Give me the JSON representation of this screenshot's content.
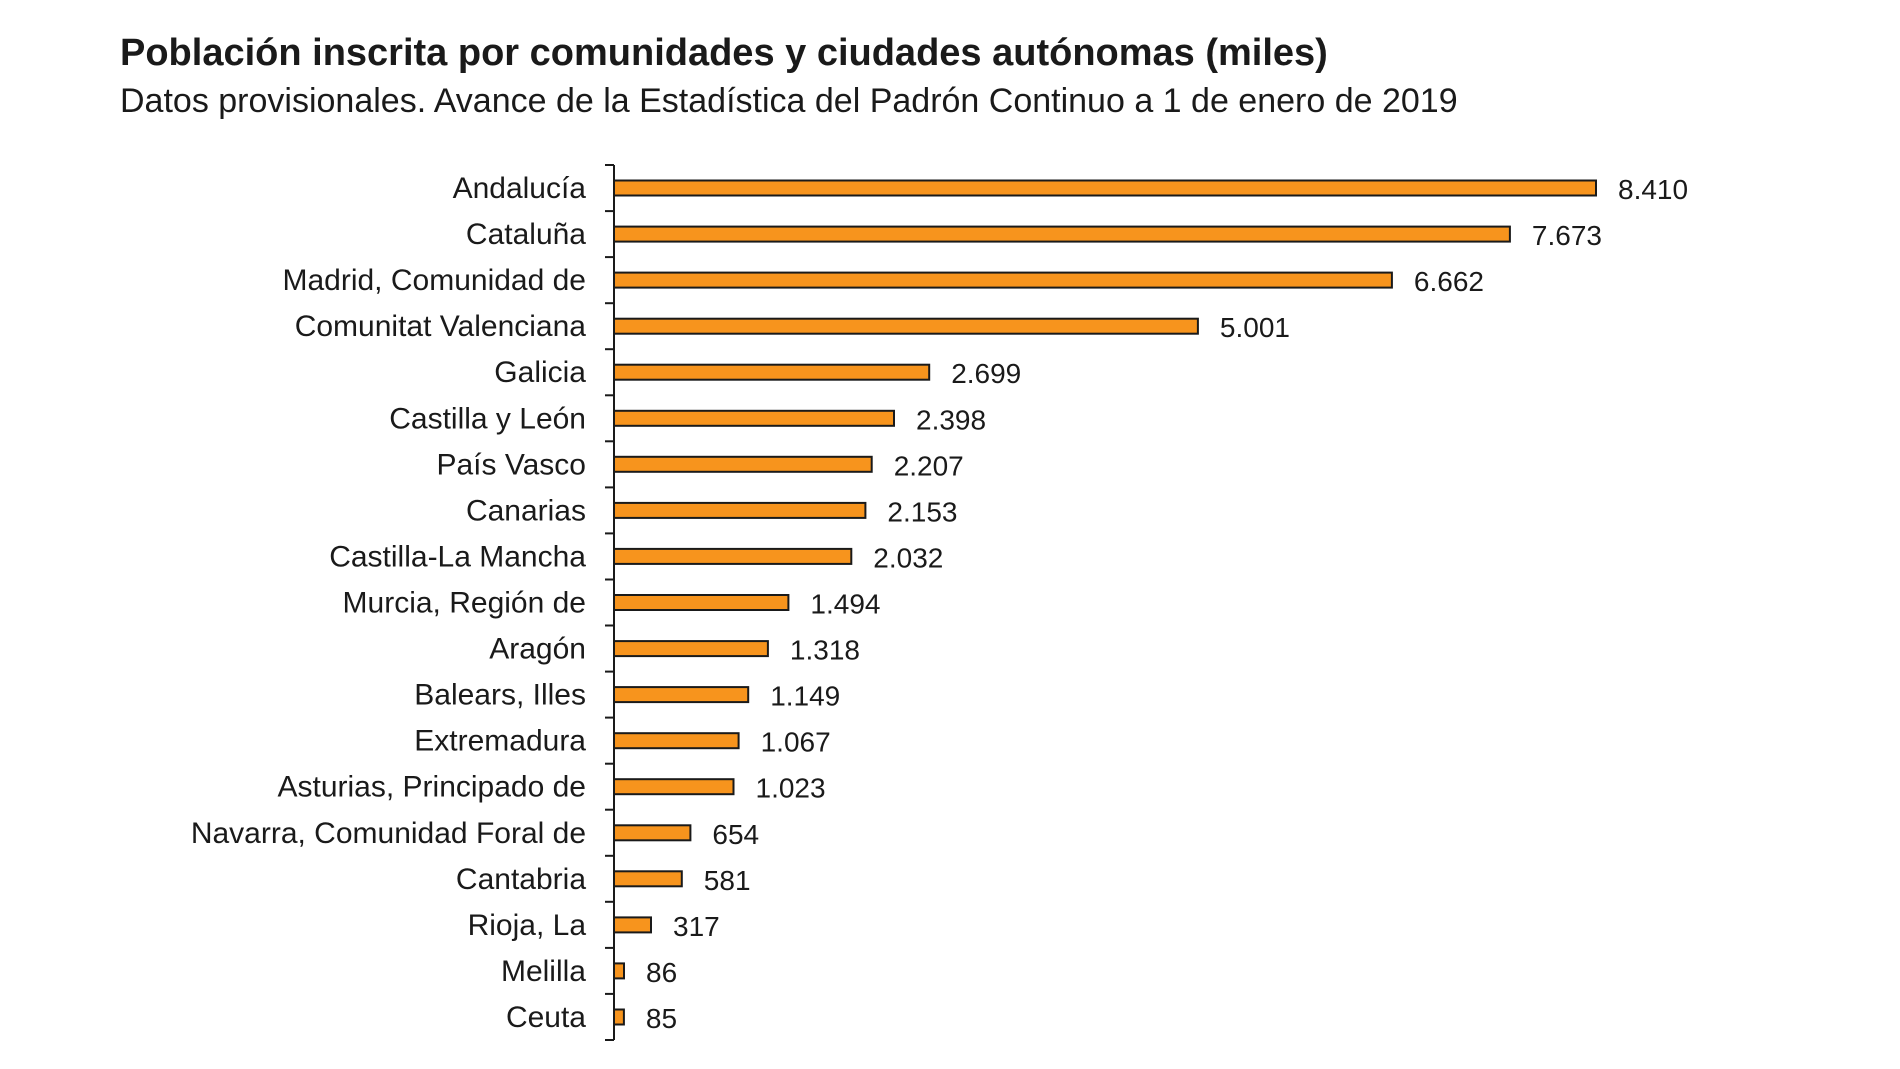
{
  "chart_data": {
    "type": "bar",
    "orientation": "horizontal",
    "title": "Población inscrita por comunidades y ciudades autónomas (miles)",
    "subtitle": "Datos provisionales. Avance de la Estadística del Padrón Continuo a 1 de enero de 2019",
    "categories": [
      "Andalucía",
      "Cataluña",
      "Madrid, Comunidad de",
      "Comunitat Valenciana",
      "Galicia",
      "Castilla y León",
      "País Vasco",
      "Canarias",
      "Castilla-La Mancha",
      "Murcia, Región de",
      "Aragón",
      "Balears, Illes",
      "Extremadura",
      "Asturias, Principado de",
      "Navarra, Comunidad Foral de",
      "Cantabria",
      "Rioja, La",
      "Melilla",
      "Ceuta"
    ],
    "values": [
      8410,
      7673,
      6662,
      5001,
      2699,
      2398,
      2207,
      2153,
      2032,
      1494,
      1318,
      1149,
      1067,
      1023,
      654,
      581,
      317,
      86,
      85
    ],
    "value_labels": [
      "8.410",
      "7.673",
      "6.662",
      "5.001",
      "2.699",
      "2.398",
      "2.207",
      "2.153",
      "2.032",
      "1.494",
      "1.318",
      "1.149",
      "1.067",
      "1.023",
      "654",
      "581",
      "317",
      "86",
      "85"
    ],
    "xlim": [
      0,
      9000
    ],
    "grid": false,
    "legend": "none",
    "bar_color": "#F7941D",
    "bar_border_color": "#1a1a1a"
  }
}
